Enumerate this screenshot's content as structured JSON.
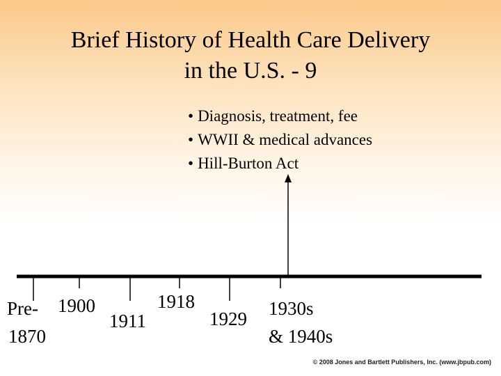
{
  "title": {
    "line1": "Brief History of Health Care Delivery",
    "line2": "in the U.S. - 9"
  },
  "bullets": [
    "Diagnosis, treatment, fee",
    "WWII & medical advances",
    "Hill-Burton Act"
  ],
  "timeline": {
    "labels": {
      "pre1870_a": "Pre-",
      "pre1870_b": "1870",
      "y1900": "1900",
      "y1911": "1911",
      "y1918": "1918",
      "y1929": "1929",
      "y1930s_a": "1930s",
      "y1930s_b": "& 1940s"
    }
  },
  "copyright": "© 2008 Jones and Bartlett Publishers, Inc. (www.jbpub.com)"
}
